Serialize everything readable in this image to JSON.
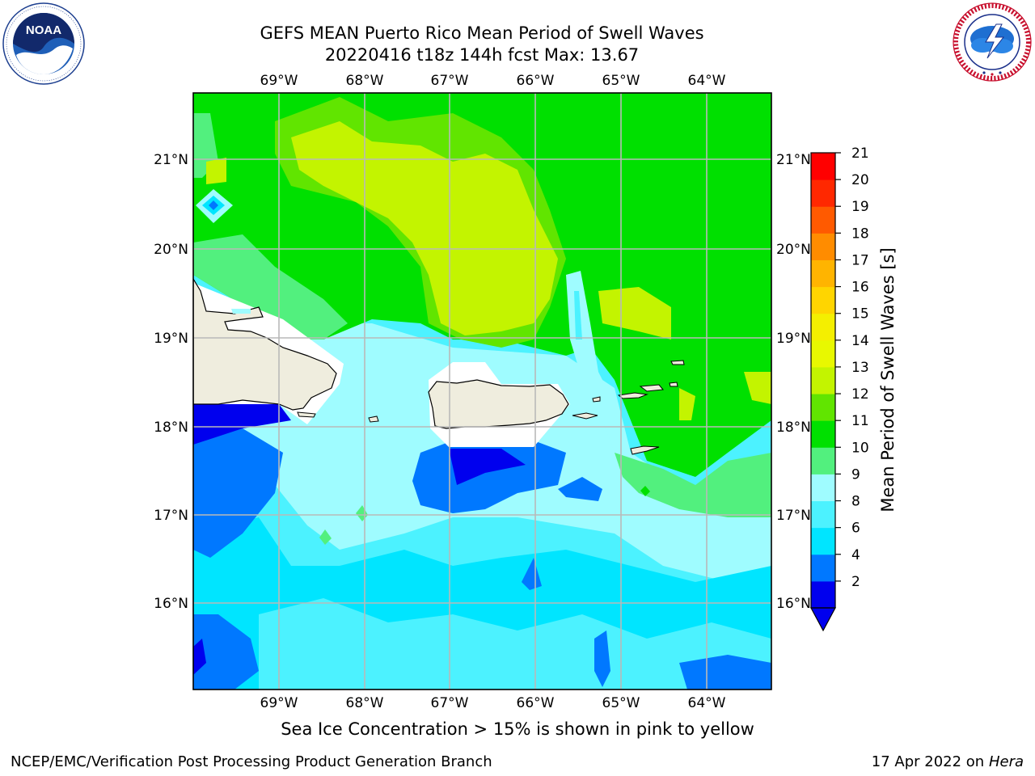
{
  "header": {
    "title_line1": "GEFS MEAN Puerto Rico Mean Period of Swell Waves",
    "title_line2": "20220416 t18z 144h fcst   Max: 13.67"
  },
  "logos": {
    "left": {
      "icon": "noaa-logo",
      "text": "NOAA",
      "ring_text": "NATIONAL OCEANIC AND ATMOSPHERIC ADMINISTRATION · U.S. DEPARTMENT OF COMMERCE"
    },
    "right": {
      "icon": "nws-logo",
      "ring_text": "NATIONAL WEATHER SERVICE"
    }
  },
  "map": {
    "lon_labels": [
      "69°W",
      "68°W",
      "67°W",
      "66°W",
      "65°W",
      "64°W"
    ],
    "lat_labels": [
      "21°N",
      "20°N",
      "19°N",
      "18°N",
      "17°N",
      "16°N"
    ],
    "land_color": "#efedde",
    "grid_color": "#b9b9b9"
  },
  "colorbar": {
    "label": "Mean Period of Swell Waves [s]",
    "ticks": [
      "21",
      "20",
      "19",
      "18",
      "17",
      "16",
      "15",
      "14",
      "13",
      "12",
      "11",
      "10",
      "9",
      "8",
      "6",
      "4",
      "2"
    ],
    "colors": [
      "#0000ee",
      "#0078ff",
      "#00e5ff",
      "#4cf2ff",
      "#9ffcff",
      "#52f07e",
      "#00e000",
      "#61e500",
      "#c3f400",
      "#e8f800",
      "#f4ef00",
      "#ffd500",
      "#ffb400",
      "#ff8c00",
      "#ff5a00",
      "#ff2800",
      "#ff0000"
    ]
  },
  "footer": {
    "note": "Sea Ice Concentration > 15% is shown in pink to yellow",
    "left": "NCEP/EMC/Verification Post Processing Product Generation Branch",
    "date": "17 Apr 2022 on",
    "machine": "Hera"
  }
}
